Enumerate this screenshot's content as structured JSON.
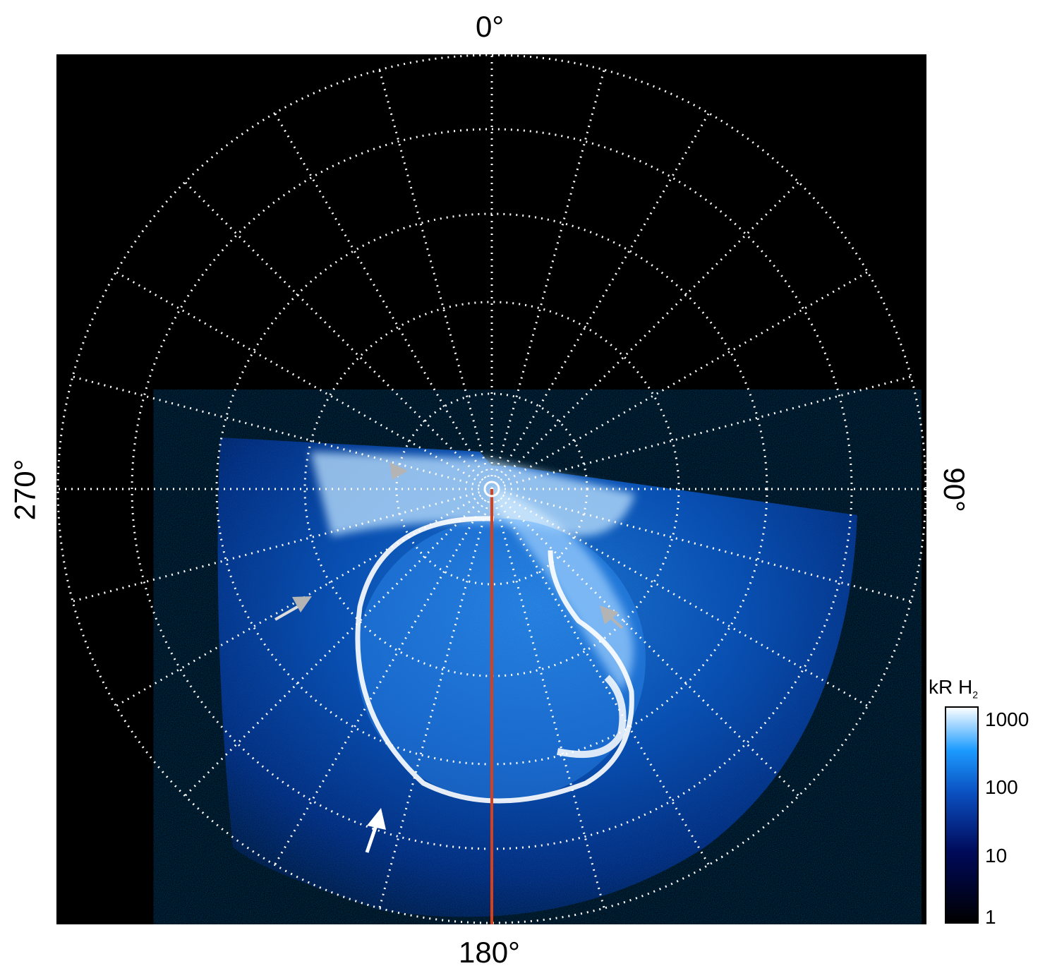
{
  "axes": {
    "top_label": "0°",
    "bottom_label": "180°",
    "left_label": "270°",
    "right_label": "90°"
  },
  "colorbar": {
    "title": "kR H",
    "title_subscript": "2",
    "scale": "log",
    "range": [
      1,
      1000
    ],
    "ticks": [
      "1000",
      "100",
      "10",
      "1"
    ],
    "colors": [
      "#000000",
      "#000a5a",
      "#0a4fc0",
      "#1c9bff",
      "#ffffff"
    ]
  },
  "colors": {
    "background": "#000000",
    "grid": "#ffffff",
    "central_meridian": "#d8401a",
    "arrow_gray": "#b4b4b4",
    "arrow_white": "#ffffff"
  }
}
